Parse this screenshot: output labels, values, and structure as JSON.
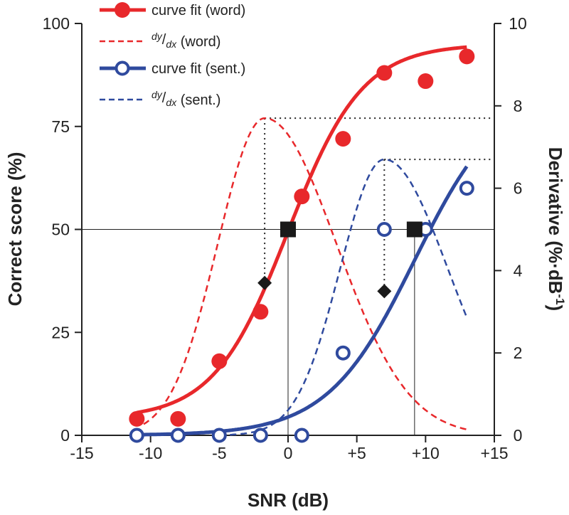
{
  "chart_data": {
    "type": "line",
    "xlabel": "SNR (dB)",
    "ylabel_left": "Correct score (%)",
    "ylabel_right": "Derivative (%·dB",
    "ylabel_right_sup": "-1",
    "ylabel_right_close": ")",
    "xlim": [
      -15,
      15
    ],
    "ylim_left": [
      0,
      100
    ],
    "ylim_right": [
      0,
      10
    ],
    "x_ticks": [
      {
        "value": -15,
        "label": "-15"
      },
      {
        "value": -10,
        "label": "-10"
      },
      {
        "value": -5,
        "label": "-5"
      },
      {
        "value": 0,
        "label": "0"
      },
      {
        "value": 5,
        "label": "+5"
      },
      {
        "value": 10,
        "label": "+10"
      },
      {
        "value": 15,
        "label": "+15"
      }
    ],
    "y_left_ticks": [
      {
        "value": 0,
        "label": "0"
      },
      {
        "value": 25,
        "label": "25"
      },
      {
        "value": 50,
        "label": "50"
      },
      {
        "value": 75,
        "label": "75"
      },
      {
        "value": 100,
        "label": "100"
      }
    ],
    "y_right_ticks": [
      {
        "value": 0,
        "label": "0"
      },
      {
        "value": 2,
        "label": "2"
      },
      {
        "value": 4,
        "label": "4"
      },
      {
        "value": 6,
        "label": "6"
      },
      {
        "value": 8,
        "label": "8"
      },
      {
        "value": 10,
        "label": "10"
      }
    ],
    "legend": [
      {
        "key": "word_fit",
        "text": "curve fit (word)",
        "sup": "",
        "sub": ""
      },
      {
        "key": "word_deriv",
        "text": " (word)",
        "sup": "dy",
        "sub": "dx"
      },
      {
        "key": "sent_fit",
        "text": "curve fit (sent.)",
        "sup": "",
        "sub": ""
      },
      {
        "key": "sent_deriv",
        "text": " (sent.)",
        "sup": "dy",
        "sub": "dx"
      }
    ],
    "series": [
      {
        "name": "word",
        "color": "#e8282b",
        "marker": "filled-circle",
        "points": [
          [
            -11,
            4
          ],
          [
            -8,
            4
          ],
          [
            -5,
            18
          ],
          [
            -2,
            30
          ],
          [
            1,
            58
          ],
          [
            4,
            72
          ],
          [
            7,
            88
          ],
          [
            10,
            86
          ],
          [
            13,
            92
          ]
        ],
        "fit": {
          "x0": 0,
          "k": 0.37,
          "lower": 4,
          "upper": 95,
          "xrange": [
            -11,
            13
          ]
        },
        "derivative_peak_x": -1.7,
        "derivative_peak": 7.7
      },
      {
        "name": "sent.",
        "color": "#2f4a9e",
        "marker": "open-circle",
        "points": [
          [
            -11,
            0
          ],
          [
            -8,
            0
          ],
          [
            -5,
            0
          ],
          [
            -2,
            0
          ],
          [
            1,
            0
          ],
          [
            4,
            20
          ],
          [
            7,
            50
          ],
          [
            10,
            50
          ],
          [
            13,
            60
          ]
        ],
        "fit": {
          "x0": 9.2,
          "k": 0.315,
          "lower": 0,
          "upper": 85,
          "xrange": [
            -11,
            13
          ]
        },
        "derivative_peak_x": 7,
        "derivative_peak": 6.7
      }
    ],
    "reference_line_y": 50,
    "midpoints": [
      {
        "series": "word",
        "x": 0,
        "y": 50
      },
      {
        "series": "sent.",
        "x": 9.2,
        "y": 50
      }
    ],
    "inflection_markers": [
      {
        "series": "word",
        "x": -1.7,
        "y": 37
      },
      {
        "series": "sent.",
        "x": 7,
        "y": 35
      }
    ]
  }
}
